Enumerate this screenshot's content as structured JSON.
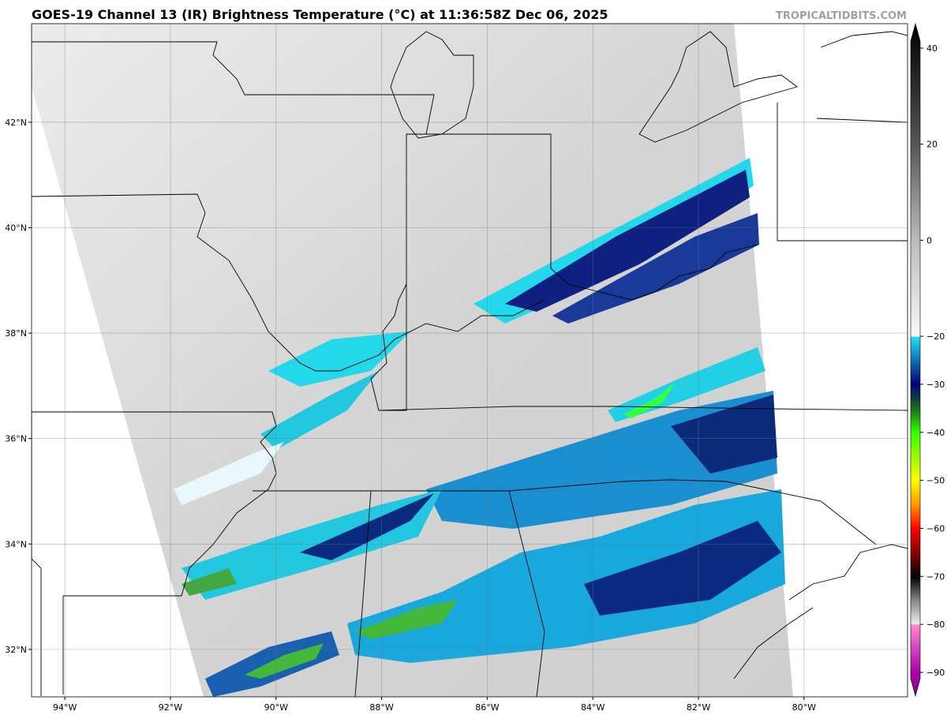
{
  "header": {
    "title": "GOES-19 Channel 13 (IR) Brightness Temperature (°C) at 11:36:58Z Dec 06, 2025",
    "watermark": "TROPICALTIDBITS.COM"
  },
  "map": {
    "lon_extent": [
      -94.63,
      -78.04
    ],
    "lat_extent": [
      31.1,
      43.87
    ],
    "lat_ticks": [
      {
        "value": 42,
        "label": "42°N"
      },
      {
        "value": 40,
        "label": "40°N"
      },
      {
        "value": 38,
        "label": "38°N"
      },
      {
        "value": 36,
        "label": "36°N"
      },
      {
        "value": 34,
        "label": "34°N"
      },
      {
        "value": 32,
        "label": "32°N"
      }
    ],
    "lon_ticks": [
      {
        "value": -94,
        "label": "94°W"
      },
      {
        "value": -92,
        "label": "92°W"
      },
      {
        "value": -90,
        "label": "90°W"
      },
      {
        "value": -88,
        "label": "88°W"
      },
      {
        "value": -86,
        "label": "86°W"
      },
      {
        "value": -84,
        "label": "84°W"
      },
      {
        "value": -82,
        "label": "82°W"
      },
      {
        "value": -80,
        "label": "80°W"
      }
    ]
  },
  "colorbar": {
    "ticks": [
      {
        "value": 40,
        "label": "40"
      },
      {
        "value": 20,
        "label": "20"
      },
      {
        "value": 0,
        "label": "0"
      },
      {
        "value": -20,
        "label": "−20"
      },
      {
        "value": -30,
        "label": "−30"
      },
      {
        "value": -40,
        "label": "−40"
      },
      {
        "value": -50,
        "label": "−50"
      },
      {
        "value": -60,
        "label": "−60"
      },
      {
        "value": -70,
        "label": "−70"
      },
      {
        "value": -80,
        "label": "−80"
      },
      {
        "value": -90,
        "label": "−90"
      }
    ]
  }
}
